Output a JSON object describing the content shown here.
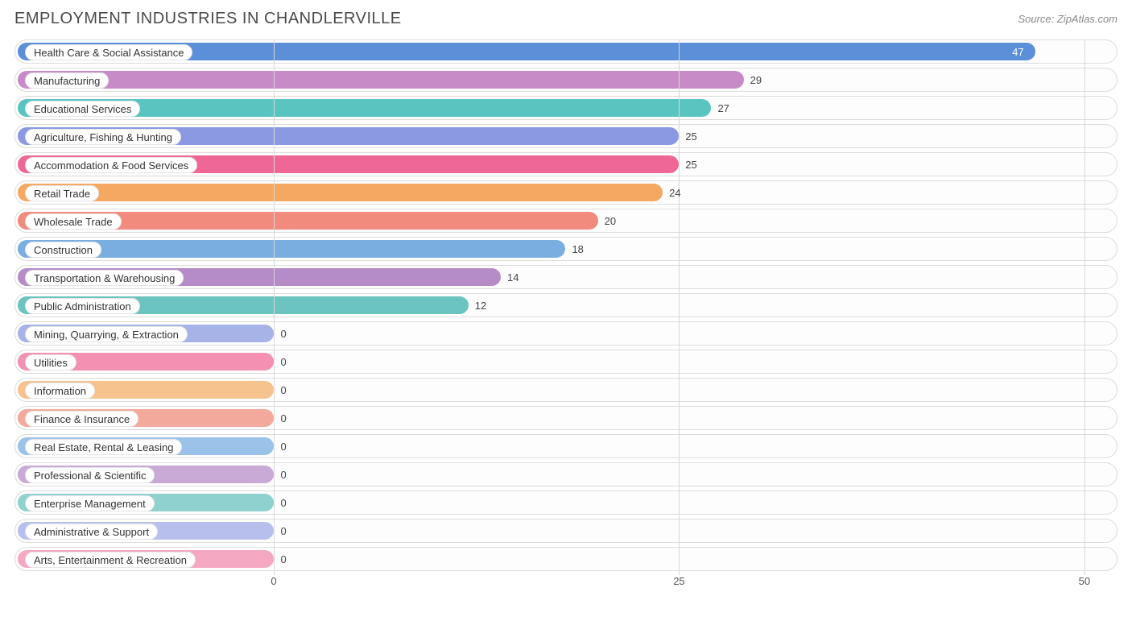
{
  "header": {
    "title": "EMPLOYMENT INDUSTRIES IN CHANDLERVILLE",
    "source": "Source: ZipAtlas.com"
  },
  "chart": {
    "type": "bar",
    "xmin": 0,
    "xmax": 50,
    "xticks": [
      0,
      25,
      50
    ],
    "zero_offset_pct": 23.5,
    "background_color": "#ffffff",
    "row_border_color": "#dcdcdc",
    "grid_color": "#d8d8d8",
    "label_fontsize": 13,
    "title_fontsize": 20,
    "bar_radius": 12,
    "bars": [
      {
        "label": "Health Care & Social Assistance",
        "value": 47,
        "color": "#5b8fd8",
        "value_inside": true,
        "value_text_color": "#ffffff"
      },
      {
        "label": "Manufacturing",
        "value": 29,
        "color": "#c78cc8",
        "value_inside": false,
        "value_text_color": "#444444"
      },
      {
        "label": "Educational Services",
        "value": 27,
        "color": "#5ac4c0",
        "value_inside": false,
        "value_text_color": "#444444"
      },
      {
        "label": "Agriculture, Fishing & Hunting",
        "value": 25,
        "color": "#8a99e2",
        "value_inside": false,
        "value_text_color": "#444444"
      },
      {
        "label": "Accommodation & Food Services",
        "value": 25,
        "color": "#ef6796",
        "value_inside": false,
        "value_text_color": "#444444"
      },
      {
        "label": "Retail Trade",
        "value": 24,
        "color": "#f4a862",
        "value_inside": false,
        "value_text_color": "#444444"
      },
      {
        "label": "Wholesale Trade",
        "value": 20,
        "color": "#f08b7d",
        "value_inside": false,
        "value_text_color": "#444444"
      },
      {
        "label": "Construction",
        "value": 18,
        "color": "#7aaee0",
        "value_inside": false,
        "value_text_color": "#444444"
      },
      {
        "label": "Transportation & Warehousing",
        "value": 14,
        "color": "#b58cc7",
        "value_inside": false,
        "value_text_color": "#444444"
      },
      {
        "label": "Public Administration",
        "value": 12,
        "color": "#6cc4c0",
        "value_inside": false,
        "value_text_color": "#444444"
      },
      {
        "label": "Mining, Quarrying, & Extraction",
        "value": 0,
        "color": "#a7b2e6",
        "value_inside": false,
        "value_text_color": "#444444"
      },
      {
        "label": "Utilities",
        "value": 0,
        "color": "#f490b2",
        "value_inside": false,
        "value_text_color": "#444444"
      },
      {
        "label": "Information",
        "value": 0,
        "color": "#f6c28d",
        "value_inside": false,
        "value_text_color": "#444444"
      },
      {
        "label": "Finance & Insurance",
        "value": 0,
        "color": "#f3a99c",
        "value_inside": false,
        "value_text_color": "#444444"
      },
      {
        "label": "Real Estate, Rental & Leasing",
        "value": 0,
        "color": "#9bc2e8",
        "value_inside": false,
        "value_text_color": "#444444"
      },
      {
        "label": "Professional & Scientific",
        "value": 0,
        "color": "#c9aad6",
        "value_inside": false,
        "value_text_color": "#444444"
      },
      {
        "label": "Enterprise Management",
        "value": 0,
        "color": "#8fd1ce",
        "value_inside": false,
        "value_text_color": "#444444"
      },
      {
        "label": "Administrative & Support",
        "value": 0,
        "color": "#b7c0ec",
        "value_inside": false,
        "value_text_color": "#444444"
      },
      {
        "label": "Arts, Entertainment & Recreation",
        "value": 0,
        "color": "#f5a8c2",
        "value_inside": false,
        "value_text_color": "#444444"
      }
    ]
  }
}
